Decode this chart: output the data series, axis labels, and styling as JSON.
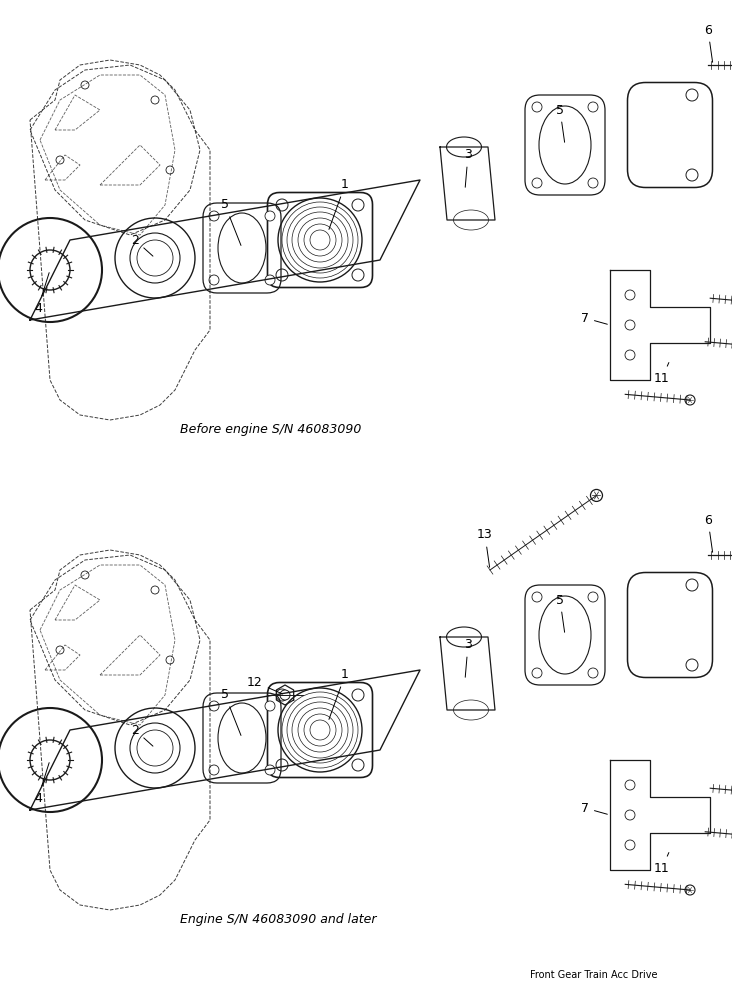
{
  "background_color": "#ffffff",
  "top_caption": "Before engine S/N 46083090",
  "bottom_caption": "Engine S/N 46083090 and later",
  "footer": "Front Gear Train Acc Drive",
  "image_color": "#1a1a1a",
  "label_fontsize": 9,
  "caption_fontsize": 9,
  "footer_fontsize": 7
}
